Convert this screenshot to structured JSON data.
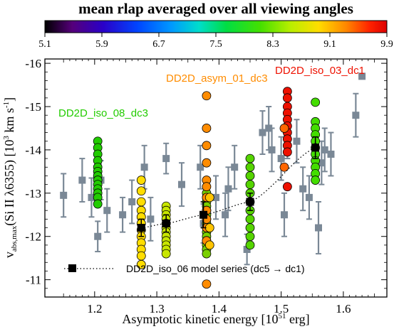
{
  "chart_data": {
    "type": "scatter",
    "colorbar": {
      "title": "mean rlap averaged over all viewing angles",
      "ticks": [
        "5.1",
        "5.9",
        "6.7",
        "7.5",
        "8.3",
        "9.1",
        "9.9"
      ],
      "range": [
        5.1,
        9.9
      ]
    },
    "xlabel": "Asymptotic kinetic energy   [10^51 erg]",
    "xlabel_parts": [
      "Asymptotic kinetic energy   [10",
      "51",
      " erg]"
    ],
    "ylabel_parts": [
      "v",
      "abs,max",
      "(Si II λ6355)   [10",
      "3",
      " km s",
      "-1",
      "]"
    ],
    "xlim": [
      1.12,
      1.67
    ],
    "ylim": [
      -10.6,
      -16.1
    ],
    "xticks": [
      "1.2",
      "1.3",
      "1.4",
      "1.5",
      "1.6"
    ],
    "yticks": [
      "-11",
      "-12",
      "-13",
      "-14",
      "-15",
      "-16"
    ],
    "annotations": [
      {
        "label": "DD2D_iso_08_dc3",
        "color": "#22cc00"
      },
      {
        "label": "DD2D_asym_01_dc3",
        "color": "#ff8c00"
      },
      {
        "label": "DD2D_iso_03_dc1",
        "color": "#ee1100"
      }
    ],
    "legend": {
      "label": "DD2D_iso_06 model series (dc5 → dc1)",
      "position": "bottom"
    },
    "observations": [
      {
        "x": 1.15,
        "y": -12.95,
        "err": 0.5
      },
      {
        "x": 1.18,
        "y": -13.3,
        "err": 0.5
      },
      {
        "x": 1.195,
        "y": -12.9,
        "err": 0.45
      },
      {
        "x": 1.205,
        "y": -12.0,
        "err": 0.35
      },
      {
        "x": 1.21,
        "y": -13.3,
        "err": 0.45
      },
      {
        "x": 1.22,
        "y": -12.6,
        "err": 0.5
      },
      {
        "x": 1.245,
        "y": -12.5,
        "err": 0.4
      },
      {
        "x": 1.26,
        "y": -12.8,
        "err": 0.5
      },
      {
        "x": 1.28,
        "y": -13.6,
        "err": 0.5
      },
      {
        "x": 1.29,
        "y": -12.4,
        "err": 0.5
      },
      {
        "x": 1.315,
        "y": -13.8,
        "err": 0.35
      },
      {
        "x": 1.34,
        "y": -13.2,
        "err": 0.5
      },
      {
        "x": 1.37,
        "y": -13.6,
        "err": 0.5
      },
      {
        "x": 1.375,
        "y": -12.3,
        "err": 0.45
      },
      {
        "x": 1.395,
        "y": -12.9,
        "err": 0.5
      },
      {
        "x": 1.41,
        "y": -12.5,
        "err": 0.5
      },
      {
        "x": 1.415,
        "y": -13.1,
        "err": 0.5
      },
      {
        "x": 1.425,
        "y": -13.6,
        "err": 0.5
      },
      {
        "x": 1.445,
        "y": -11.7,
        "err": 0.35
      },
      {
        "x": 1.47,
        "y": -14.4,
        "err": 0.5
      },
      {
        "x": 1.48,
        "y": -14.5,
        "err": 0.5
      },
      {
        "x": 1.485,
        "y": -14.0,
        "err": 0.5
      },
      {
        "x": 1.5,
        "y": -13.8,
        "err": 0.5
      },
      {
        "x": 1.505,
        "y": -12.5,
        "err": 0.5
      },
      {
        "x": 1.51,
        "y": -14.3,
        "err": 0.5
      },
      {
        "x": 1.525,
        "y": -14.2,
        "err": 0.5
      },
      {
        "x": 1.535,
        "y": -13.1,
        "err": 0.5
      },
      {
        "x": 1.545,
        "y": -12.9,
        "err": 0.5
      },
      {
        "x": 1.555,
        "y": -13.9,
        "err": 0.5
      },
      {
        "x": 1.56,
        "y": -12.2,
        "err": 0.6
      },
      {
        "x": 1.565,
        "y": -13.7,
        "err": 0.5
      },
      {
        "x": 1.57,
        "y": -14.0,
        "err": 0.5
      },
      {
        "x": 1.58,
        "y": -13.9,
        "err": 0.5
      },
      {
        "x": 1.62,
        "y": -14.8,
        "err": 0.5
      },
      {
        "x": 1.63,
        "y": -15.7,
        "err": 0.0
      }
    ],
    "models": [
      {
        "x": 1.205,
        "color": "#22cc00",
        "values": [
          -14.2,
          -14.05,
          -13.9,
          -13.75,
          -13.6,
          -13.5,
          -13.4,
          -13.3,
          -13.2,
          -13.1,
          -13.0,
          -12.9,
          -12.75
        ]
      },
      {
        "x": 1.275,
        "color": "#ffdd00",
        "values": [
          -13.3,
          -13.05,
          -12.8,
          -12.6,
          -12.45,
          -12.3,
          -12.15,
          -12.0,
          -11.85,
          -11.7,
          -11.55,
          -11.35
        ]
      },
      {
        "x": 1.315,
        "color": "#c8e600",
        "values": [
          -12.7,
          -12.6,
          -12.5,
          -12.4,
          -12.3,
          -12.2,
          -12.1,
          -12.0,
          -11.9,
          -11.8,
          -11.7,
          -11.6
        ]
      },
      {
        "x": 1.38,
        "color": "#7ad000",
        "values": [
          -13.0,
          -12.9,
          -12.8,
          -12.7,
          -12.6,
          -12.5,
          -12.4,
          -12.3,
          -12.2,
          -12.1,
          -12.0,
          -11.9,
          -11.8,
          -11.7,
          -11.6
        ]
      },
      {
        "x": 1.38,
        "color": "#ff8c00",
        "values": [
          -15.25,
          -14.5,
          -14.1,
          -13.7,
          -13.3,
          -13.15,
          -12.9,
          -12.6,
          -12.4,
          -12.2,
          -11.9,
          -10.9
        ]
      },
      {
        "x": 1.385,
        "color": "#ffc400",
        "values": [
          -12.9,
          -12.2,
          -11.8
        ]
      },
      {
        "x": 1.45,
        "color": "#55d400",
        "values": [
          -13.8,
          -13.6,
          -13.4,
          -13.2,
          -13.0,
          -12.8,
          -12.6,
          -12.4,
          -12.2,
          -12.0,
          -11.8
        ]
      },
      {
        "x": 1.51,
        "color": "#ee1100",
        "values": [
          -15.35,
          -15.2,
          -15.0,
          -14.85,
          -14.7,
          -14.55,
          -14.4,
          -14.25,
          -14.1,
          -13.95,
          -13.15
        ]
      },
      {
        "x": 1.505,
        "color": "#ff6600",
        "values": [
          -14.5,
          -13.6
        ]
      },
      {
        "x": 1.555,
        "color": "#44dd00",
        "values": [
          -15.1,
          -14.65,
          -14.5,
          -14.35,
          -14.2,
          -14.05,
          -13.9,
          -13.75,
          -13.6,
          -13.45,
          -13.3
        ]
      }
    ],
    "series_iso06": {
      "x": [
        1.275,
        1.315,
        1.375,
        1.45,
        1.555
      ],
      "y": [
        -12.2,
        -12.3,
        -12.5,
        -12.8,
        -14.05
      ],
      "err": [
        0.2,
        0.2,
        0.3,
        0.2,
        0.25
      ]
    }
  }
}
